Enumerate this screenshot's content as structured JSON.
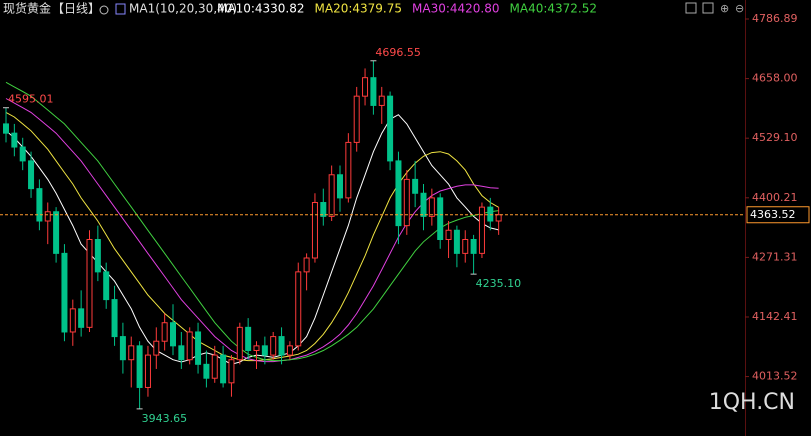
{
  "chart_data": {
    "type": "candlestick",
    "title": "现货黄金",
    "period": "【日线】",
    "indicator": "MA1(10,20,30,40)",
    "up_color": "#ff3b3b",
    "down_color": "#00c28a",
    "ylim": [
      3885,
      4828
    ],
    "yticks": [
      4786.89,
      {
        "value": 4658.0,
        "label": "4658.00"
      },
      {
        "value": 4529.1,
        "label": "4529.10"
      },
      4400.21,
      4271.31,
      4142.41,
      4013.52
    ],
    "open": [
      4560,
      4540,
      4510,
      4480,
      4420,
      4350,
      4370,
      4280,
      4110,
      4160,
      4120,
      4310,
      4240,
      4180,
      4100,
      4050,
      4080,
      3990,
      4060,
      4090,
      4130,
      4080,
      4050,
      4110,
      4040,
      4010,
      4060,
      4000,
      4050,
      4120,
      4070,
      4080,
      4060,
      4100,
      4060,
      4080,
      4240,
      4270,
      4390,
      4360,
      4450,
      4400,
      4520,
      4620,
      4660,
      4600,
      4620,
      4480,
      4340,
      4440,
      4410,
      4360,
      4400,
      4310,
      4330,
      4280,
      4310,
      4280,
      4380,
      4350
    ],
    "high": [
      4595.01,
      4560,
      4530,
      4500,
      4440,
      4390,
      4380,
      4300,
      4180,
      4200,
      4330,
      4340,
      4260,
      4210,
      4130,
      4100,
      4090,
      4080,
      4120,
      4150,
      4170,
      4110,
      4120,
      4130,
      4070,
      4080,
      4080,
      4060,
      4130,
      4140,
      4090,
      4100,
      4110,
      4120,
      4090,
      4260,
      4280,
      4410,
      4420,
      4470,
      4470,
      4540,
      4640,
      4680,
      4696.55,
      4640,
      4630,
      4500,
      4460,
      4480,
      4430,
      4420,
      4410,
      4350,
      4340,
      4330,
      4320,
      4390,
      4400,
      4380
    ],
    "low": [
      4520,
      4490,
      4460,
      4400,
      4330,
      4300,
      4260,
      4090,
      4080,
      4100,
      4110,
      4220,
      4160,
      4080,
      4020,
      3990,
      3943.65,
      3970,
      4030,
      4070,
      4060,
      4030,
      4040,
      4020,
      3990,
      4000,
      3990,
      3970,
      4040,
      4050,
      4030,
      4040,
      4050,
      4040,
      4050,
      4070,
      4200,
      4260,
      4340,
      4350,
      4370,
      4390,
      4500,
      4600,
      4580,
      4560,
      4460,
      4300,
      4320,
      4380,
      4330,
      4340,
      4290,
      4270,
      4250,
      4260,
      4235.1,
      4270,
      4330,
      4320
    ],
    "close": [
      4540,
      4510,
      4480,
      4420,
      4350,
      4370,
      4280,
      4110,
      4160,
      4120,
      4310,
      4240,
      4180,
      4100,
      4050,
      4080,
      3990,
      4060,
      4090,
      4130,
      4080,
      4050,
      4110,
      4040,
      4010,
      4060,
      4000,
      4050,
      4120,
      4070,
      4080,
      4060,
      4100,
      4060,
      4080,
      4240,
      4270,
      4390,
      4360,
      4450,
      4400,
      4520,
      4620,
      4660,
      4600,
      4620,
      4480,
      4340,
      4440,
      4410,
      4360,
      4400,
      4310,
      4330,
      4280,
      4310,
      4280,
      4380,
      4350,
      4363.52
    ],
    "annotations": [
      "4595.01",
      "4696.55",
      "3943.65",
      "4235.10"
    ],
    "series": [
      {
        "name": "MA10:4330.82",
        "color": "#ffffff",
        "values": [
          4545,
          4530,
          4510,
          4490,
          4465,
          4440,
          4410,
          4375,
          4340,
          4300,
          4280,
          4260,
          4240,
          4220,
          4190,
          4160,
          4120,
          4090,
          4070,
          4060,
          4050,
          4045,
          4050,
          4060,
          4065,
          4060,
          4050,
          4040,
          4045,
          4055,
          4060,
          4058,
          4055,
          4060,
          4065,
          4080,
          4100,
          4140,
          4190,
          4240,
          4290,
          4340,
          4400,
          4450,
          4500,
          4540,
          4570,
          4580,
          4560,
          4530,
          4500,
          4470,
          4450,
          4430,
          4400,
          4380,
          4360,
          4345,
          4335,
          4330.82
        ]
      },
      {
        "name": "MA20:4379.75",
        "color": "#f0e442",
        "values": [
          4585,
          4575,
          4560,
          4545,
          4525,
          4505,
          4480,
          4455,
          4430,
          4400,
          4375,
          4350,
          4320,
          4290,
          4265,
          4240,
          4215,
          4190,
          4170,
          4150,
          4135,
          4120,
          4105,
          4090,
          4080,
          4070,
          4060,
          4055,
          4050,
          4048,
          4048,
          4050,
          4052,
          4055,
          4058,
          4062,
          4070,
          4085,
          4105,
          4130,
          4160,
          4195,
          4235,
          4275,
          4320,
          4360,
          4400,
          4430,
          4455,
          4475,
          4490,
          4498,
          4500,
          4495,
          4480,
          4460,
          4430,
          4405,
          4390,
          4379.75
        ]
      },
      {
        "name": "MA30:4420.80",
        "color": "#e040e0",
        "values": [
          4615,
          4605,
          4595,
          4585,
          4570,
          4555,
          4540,
          4520,
          4500,
          4480,
          4455,
          4430,
          4405,
          4380,
          4355,
          4330,
          4305,
          4280,
          4255,
          4230,
          4205,
          4180,
          4160,
          4140,
          4120,
          4100,
          4085,
          4070,
          4060,
          4052,
          4048,
          4046,
          4046,
          4048,
          4050,
          4055,
          4060,
          4068,
          4078,
          4090,
          4105,
          4125,
          4150,
          4180,
          4210,
          4245,
          4280,
          4315,
          4345,
          4370,
          4390,
          4405,
          4415,
          4420,
          4425,
          4428,
          4428,
          4425,
          4422,
          4420.8
        ]
      },
      {
        "name": "MA40:4372.52",
        "color": "#40d040",
        "values": [
          4650,
          4640,
          4630,
          4620,
          4605,
          4590,
          4575,
          4560,
          4540,
          4520,
          4500,
          4480,
          4455,
          4430,
          4405,
          4380,
          4355,
          4330,
          4305,
          4280,
          4255,
          4230,
          4205,
          4180,
          4155,
          4130,
          4110,
          4090,
          4075,
          4062,
          4055,
          4050,
          4048,
          4048,
          4050,
          4052,
          4056,
          4062,
          4070,
          4080,
          4092,
          4105,
          4120,
          4140,
          4160,
          4185,
          4210,
          4235,
          4260,
          4285,
          4305,
          4320,
          4335,
          4345,
          4352,
          4358,
          4362,
          4366,
          4370,
          4372.52
        ]
      }
    ],
    "price_line_color": "#ff9a2e",
    "watermark": "1QH.CN"
  }
}
